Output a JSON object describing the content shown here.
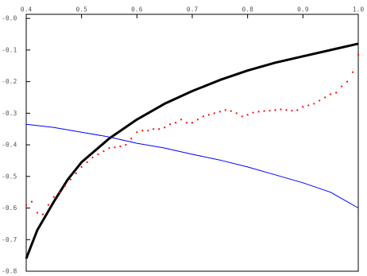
{
  "chart_data": {
    "type": "line",
    "xlim": [
      0.4,
      1.0
    ],
    "ylim": [
      -0.8,
      0.013
    ],
    "xticks": [
      0.4,
      0.5,
      0.6,
      0.7,
      0.8,
      0.9,
      {
        "value": 1,
        "label": "1.0"
      }
    ],
    "yticks": [
      {
        "value": 0,
        "label": "-0.0"
      },
      -0.1,
      -0.2,
      -0.3,
      -0.4,
      -0.5,
      -0.6,
      -0.7,
      -0.8
    ],
    "series": [
      {
        "style": "line",
        "color": "#000000",
        "width": 3,
        "x": [
          0.4,
          0.42,
          0.45,
          0.475,
          0.5,
          0.55,
          0.6,
          0.65,
          0.7,
          0.75,
          0.8,
          0.85,
          0.9,
          0.95,
          1.0
        ],
        "values": [
          -0.76,
          -0.67,
          -0.58,
          -0.51,
          -0.455,
          -0.38,
          -0.32,
          -0.27,
          -0.23,
          -0.195,
          -0.165,
          -0.14,
          -0.12,
          -0.1,
          -0.08
        ]
      },
      {
        "style": "line",
        "color": "#0000ff",
        "width": 1,
        "x": [
          0.4,
          0.45,
          0.5,
          0.55,
          0.6,
          0.65,
          0.7,
          0.75,
          0.8,
          0.85,
          0.9,
          0.95,
          1.0
        ],
        "values": [
          -0.335,
          -0.345,
          -0.36,
          -0.375,
          -0.395,
          -0.41,
          -0.43,
          -0.448,
          -0.47,
          -0.495,
          -0.52,
          -0.55,
          -0.6
        ]
      },
      {
        "style": "dots",
        "color": "#ff0000",
        "x": [
          0.4,
          0.41,
          0.42,
          0.43,
          0.44,
          0.45,
          0.46,
          0.47,
          0.48,
          0.49,
          0.5,
          0.51,
          0.52,
          0.53,
          0.54,
          0.55,
          0.56,
          0.57,
          0.58,
          0.59,
          0.6,
          0.61,
          0.62,
          0.63,
          0.64,
          0.65,
          0.66,
          0.67,
          0.68,
          0.69,
          0.7,
          0.71,
          0.72,
          0.73,
          0.74,
          0.75,
          0.76,
          0.77,
          0.78,
          0.79,
          0.8,
          0.81,
          0.82,
          0.83,
          0.84,
          0.85,
          0.86,
          0.87,
          0.88,
          0.89,
          0.9,
          0.91,
          0.92,
          0.93,
          0.94,
          0.95,
          0.96,
          0.97,
          0.98,
          0.99,
          1.0
        ],
        "values": [
          -0.59,
          -0.58,
          -0.615,
          -0.62,
          -0.59,
          -0.565,
          -0.55,
          -0.53,
          -0.51,
          -0.49,
          -0.47,
          -0.455,
          -0.44,
          -0.43,
          -0.42,
          -0.41,
          -0.408,
          -0.405,
          -0.4,
          -0.38,
          -0.36,
          -0.355,
          -0.355,
          -0.35,
          -0.35,
          -0.345,
          -0.335,
          -0.33,
          -0.32,
          -0.33,
          -0.33,
          -0.32,
          -0.31,
          -0.305,
          -0.3,
          -0.295,
          -0.29,
          -0.293,
          -0.3,
          -0.31,
          -0.305,
          -0.298,
          -0.295,
          -0.293,
          -0.292,
          -0.29,
          -0.288,
          -0.29,
          -0.292,
          -0.29,
          -0.28,
          -0.275,
          -0.27,
          -0.26,
          -0.25,
          -0.24,
          -0.235,
          -0.215,
          -0.2,
          -0.17,
          -0.115
        ]
      }
    ]
  }
}
